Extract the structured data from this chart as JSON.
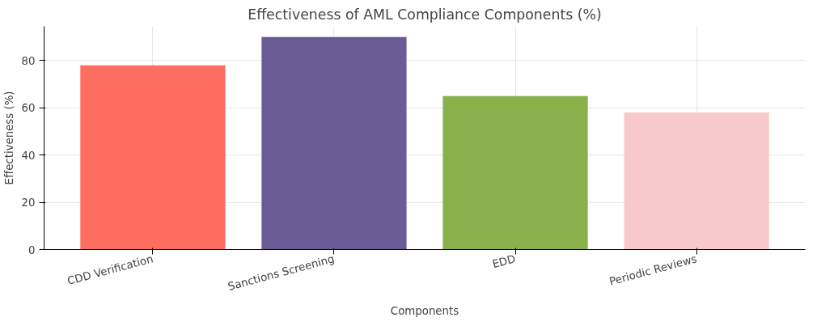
{
  "chart_data": {
    "type": "bar",
    "title": "Effectiveness of AML Compliance Components (%)",
    "xlabel": "Components",
    "ylabel": "Effectiveness (%)",
    "categories": [
      "CDD Verification",
      "Sanctions Screening",
      "EDD",
      "Periodic Reviews"
    ],
    "values": [
      78,
      90,
      65,
      58
    ],
    "colors": [
      "#ff6f61",
      "#6b5b95",
      "#88b04b",
      "#f7cac9"
    ],
    "ylim": [
      0,
      94.5
    ],
    "yticks": [
      0,
      20,
      40,
      60,
      80
    ],
    "grid": true
  }
}
